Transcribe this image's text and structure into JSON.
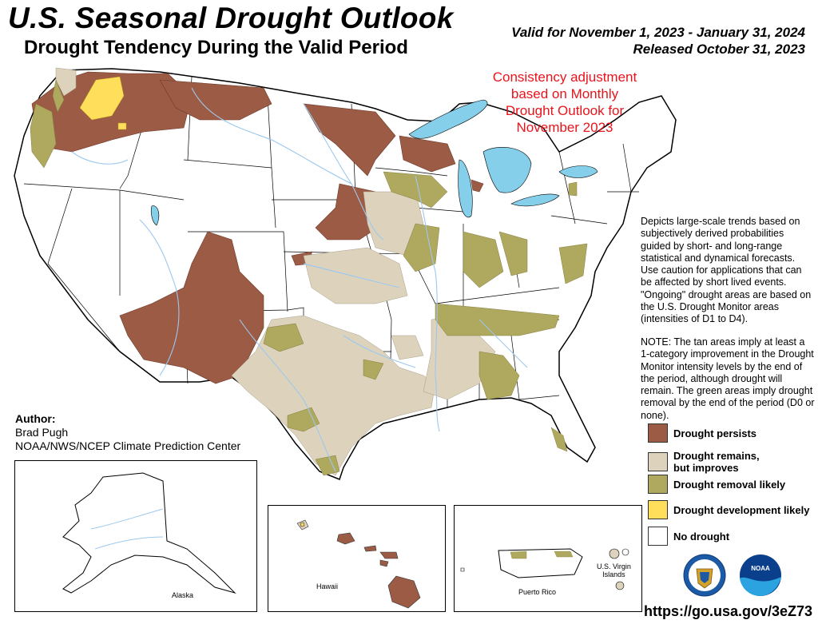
{
  "header": {
    "title": "U.S. Seasonal Drought Outlook",
    "subtitle": "Drought Tendency During the Valid Period",
    "valid_line": "Valid for November 1, 2023 - January 31, 2024",
    "released_line": "Released October 31, 2023"
  },
  "consistency_note": {
    "lines": [
      "Consistency adjustment",
      "based on Monthly",
      "Drought Outlook for",
      "November 2023"
    ]
  },
  "description": {
    "paragraph1": "Depicts large-scale trends based on subjectively derived probabilities guided by short- and long-range statistical and dynamical forecasts. Use caution for applications that can be affected by short lived events. \"Ongoing\" drought areas are based on the U.S. Drought Monitor areas (intensities of D1 to D4).",
    "paragraph2": "NOTE: The tan areas imply at least a 1-category improvement in the Drought Monitor intensity levels by the end of the period, although drought will remain. The green areas imply drought removal by the end of the period (D0 or none)."
  },
  "author": {
    "heading": "Author:",
    "name": "Brad Pugh",
    "org": "NOAA/NWS/NCEP Climate Prediction Center"
  },
  "legend": {
    "items": [
      {
        "label_line1": "Drought persists",
        "label_line2": "",
        "color": "#9c5b45"
      },
      {
        "label_line1": "Drought remains,",
        "label_line2": "but improves",
        "color": "#ddd3bd"
      },
      {
        "label_line1": "Drought removal likely",
        "label_line2": "",
        "color": "#afa85f"
      },
      {
        "label_line1": "Drought development likely",
        "label_line2": "",
        "color": "#ffde5c"
      },
      {
        "label_line1": "No drought",
        "label_line2": "",
        "color": "#ffffff"
      }
    ]
  },
  "insets": {
    "alaska": "Alaska",
    "hawaii": "Hawaii",
    "puerto_rico": "Puerto Rico",
    "usvi_line1": "U.S. Virgin",
    "usvi_line2": "Islands"
  },
  "logos": [
    "doc-seal-icon",
    "noaa-logo-icon"
  ],
  "logo_text": {
    "noaa": "NOAA"
  },
  "url": "https://go.usa.gov/3eZ73",
  "colors": {
    "water": "#85cfea",
    "rivers": "#9cc8ef",
    "persists": "#9c5b45",
    "improves": "#ddd3bd",
    "removal": "#afa85f",
    "development": "#ffde5c",
    "consistency_text": "#e8141c"
  }
}
